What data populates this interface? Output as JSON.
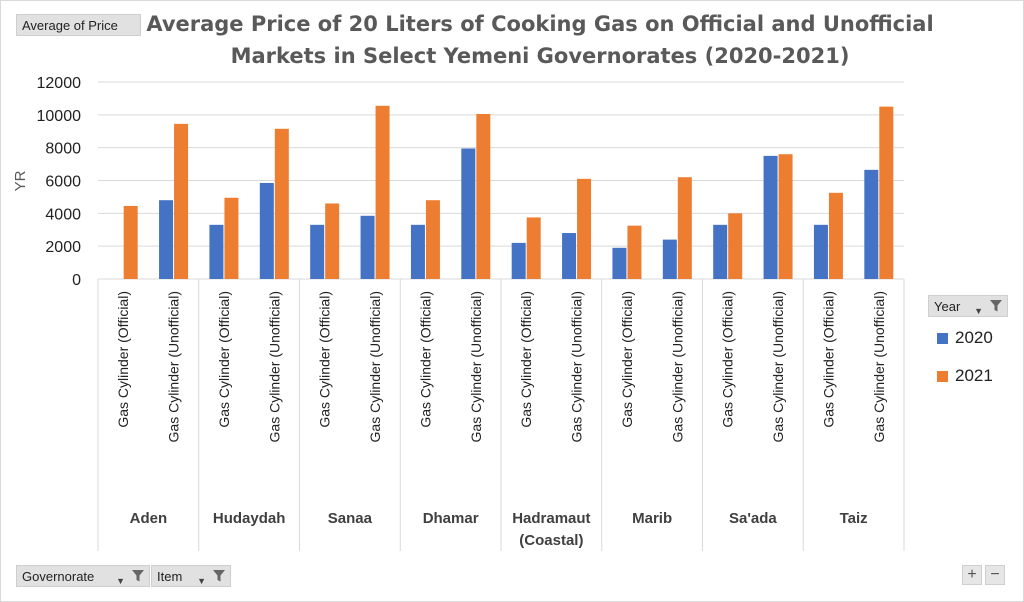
{
  "pivot": {
    "value_field": "Average of Price",
    "legend_field": "Year",
    "axis_fields": [
      "Governorate",
      "Item"
    ]
  },
  "zoom": {
    "plus": "+",
    "minus": "−"
  },
  "icons": {
    "filter": "filter-icon",
    "dropdown": "dropdown-arrow-icon"
  },
  "colors": {
    "2020": "#4472C4",
    "2021": "#ED7D31"
  },
  "chart_data": {
    "type": "bar",
    "title": "Average Price of 20 Liters of Cooking Gas on Official and Unofficial Markets in Select Yemeni Governorates (2020-2021)",
    "title_lines": [
      "Average Price of 20 Liters of Cooking Gas on Official and Unofficial",
      "Markets in Select Yemeni Governorates (2020-2021)"
    ],
    "ylabel": "YR",
    "ylim": [
      0,
      12000
    ],
    "yticks": [
      "0",
      "2000",
      "4000",
      "6000",
      "8000",
      "10000",
      "12000"
    ],
    "grid": true,
    "legend_position": "right",
    "groups": [
      "Aden",
      "Hudaydah",
      "Sanaa",
      "Dhamar",
      "Hadramaut (Coastal)",
      "Marib",
      "Sa'ada",
      "Taiz"
    ],
    "items": [
      "Gas Cylinder (Official)",
      "Gas Cylinder (Unofficial)"
    ],
    "categories": [
      "Aden / Gas Cylinder (Official)",
      "Aden / Gas Cylinder (Unofficial)",
      "Hudaydah / Gas Cylinder (Official)",
      "Hudaydah / Gas Cylinder (Unofficial)",
      "Sanaa / Gas Cylinder (Official)",
      "Sanaa / Gas Cylinder (Unofficial)",
      "Dhamar / Gas Cylinder (Official)",
      "Dhamar / Gas Cylinder (Unofficial)",
      "Hadramaut (Coastal) / Gas Cylinder (Official)",
      "Hadramaut (Coastal) / Gas Cylinder (Unofficial)",
      "Marib / Gas Cylinder (Official)",
      "Marib / Gas Cylinder (Unofficial)",
      "Sa'ada / Gas Cylinder (Official)",
      "Sa'ada / Gas Cylinder (Unofficial)",
      "Taiz / Gas Cylinder (Official)",
      "Taiz / Gas Cylinder (Unofficial)"
    ],
    "series": [
      {
        "name": "2020",
        "values": [
          null,
          4800,
          3300,
          5850,
          3300,
          3850,
          3300,
          7950,
          2200,
          2800,
          1900,
          2400,
          3300,
          7500,
          3300,
          6650
        ]
      },
      {
        "name": "2021",
        "values": [
          4450,
          9450,
          4950,
          9150,
          4600,
          10550,
          4800,
          10050,
          3750,
          6100,
          3250,
          6200,
          4000,
          7600,
          5250,
          10500
        ]
      }
    ]
  }
}
